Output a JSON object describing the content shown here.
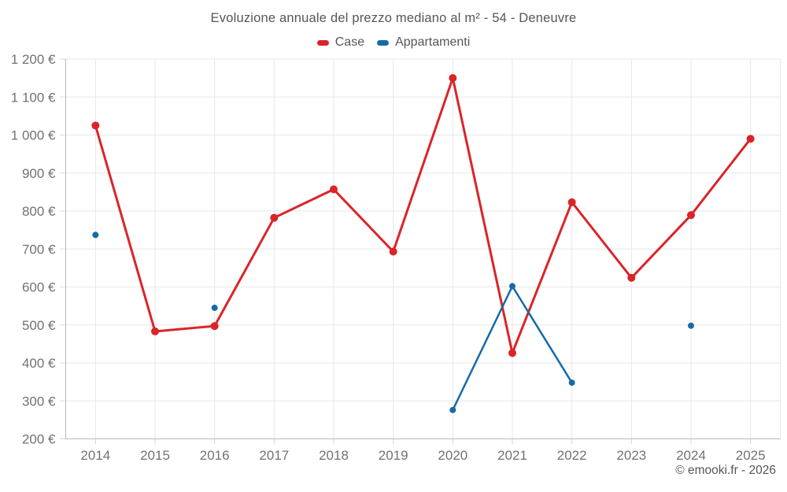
{
  "title": "Evoluzione annuale del prezzo mediano al m² - 54 - Deneuvre",
  "copyright": "© emooki.fr - 2026",
  "colors": {
    "case": "#db2428",
    "apartments": "#156ba8",
    "title_text": "#54565a",
    "axis_text": "#6f7275",
    "grid": "#e7e7e7",
    "axis_line": "#b9b9b9",
    "tick": "#d6d6d6",
    "background": "#ffffff"
  },
  "chart_data": {
    "type": "line",
    "categories": [
      "2014",
      "2015",
      "2016",
      "2017",
      "2018",
      "2019",
      "2020",
      "2021",
      "2022",
      "2023",
      "2024",
      "2025"
    ],
    "series": [
      {
        "name": "Case",
        "color": "#db2428",
        "values": [
          1025,
          483,
          497,
          782,
          857,
          693,
          1150,
          426,
          823,
          624,
          789,
          990
        ]
      },
      {
        "name": "Appartamenti",
        "color": "#156ba8",
        "values": [
          737,
          null,
          545,
          null,
          null,
          null,
          276,
          602,
          348,
          null,
          498,
          null
        ]
      }
    ],
    "title": "Evoluzione annuale del prezzo mediano al m² - 54 - Deneuvre",
    "xlabel": "",
    "ylabel": "",
    "ylim": [
      200,
      1200
    ],
    "ytick_step": 100,
    "y_tick_labels": [
      "200 €",
      "300 €",
      "400 €",
      "500 €",
      "600 €",
      "700 €",
      "800 €",
      "900 €",
      "1 000 €",
      "1 100 €",
      "1 200 €"
    ],
    "grid": true,
    "legend_position": "top"
  }
}
